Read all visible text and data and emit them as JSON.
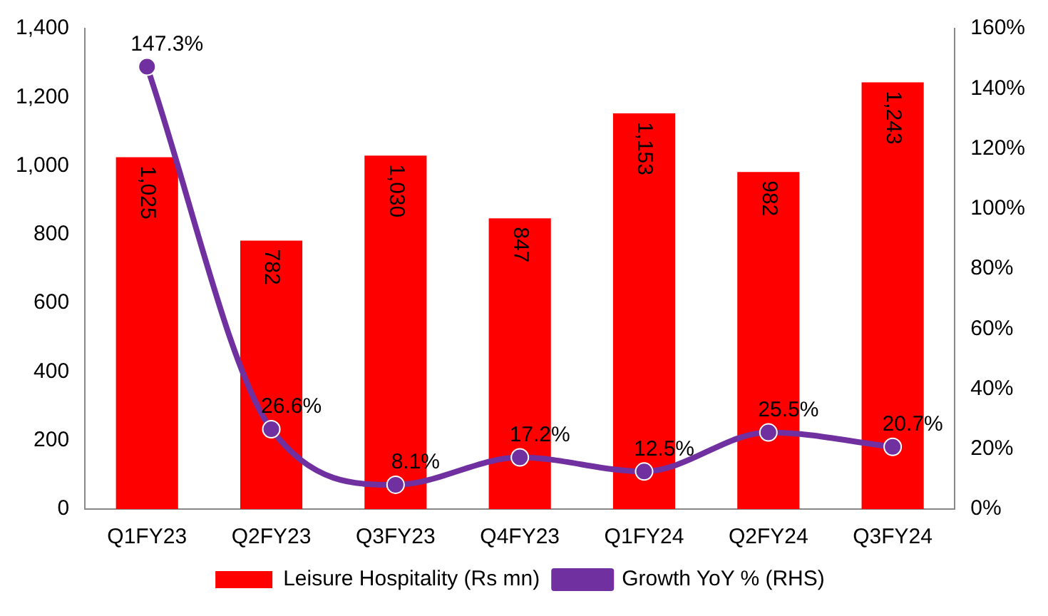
{
  "chart_data": {
    "type": "bar",
    "categories": [
      "Q1FY23",
      "Q2FY23",
      "Q3FY23",
      "Q4FY23",
      "Q1FY24",
      "Q2FY24",
      "Q3FY24"
    ],
    "series": [
      {
        "name": "Leisure Hospitality (Rs mn)",
        "color": "#ff0000",
        "values": [
          1025,
          782,
          1030,
          847,
          1153,
          982,
          1243
        ],
        "value_labels": [
          "1,025",
          "782",
          "1,030",
          "847",
          "1,153",
          "982",
          "1,243"
        ]
      },
      {
        "name": "Growth YoY % (RHS)",
        "type": "line",
        "axis": "y2",
        "color": "#7030a0",
        "marker": "circle",
        "values": [
          147.3,
          26.6,
          8.1,
          17.2,
          12.5,
          25.5,
          20.7
        ],
        "value_labels": [
          "147.3%",
          "26.6%",
          "8.1%",
          "17.2%",
          "12.5%",
          "25.5%",
          "20.7%"
        ]
      }
    ],
    "ylim": [
      0,
      1400
    ],
    "yticks": [
      0,
      200,
      400,
      600,
      800,
      {
        "value": 1000,
        "label": "1,000"
      },
      {
        "value": 1200,
        "label": "1,200"
      },
      {
        "value": 1400,
        "label": "1,400"
      }
    ],
    "y2lim": [
      0,
      160
    ],
    "y2ticks": [
      {
        "value": 0,
        "label": "0%"
      },
      {
        "value": 20,
        "label": "20%"
      },
      {
        "value": 40,
        "label": "40%"
      },
      {
        "value": 60,
        "label": "60%"
      },
      {
        "value": 80,
        "label": "80%"
      },
      {
        "value": 100,
        "label": "100%"
      },
      {
        "value": 120,
        "label": "120%"
      },
      {
        "value": 140,
        "label": "140%"
      },
      {
        "value": 160,
        "label": "160%"
      }
    ],
    "legend": "bottom"
  }
}
